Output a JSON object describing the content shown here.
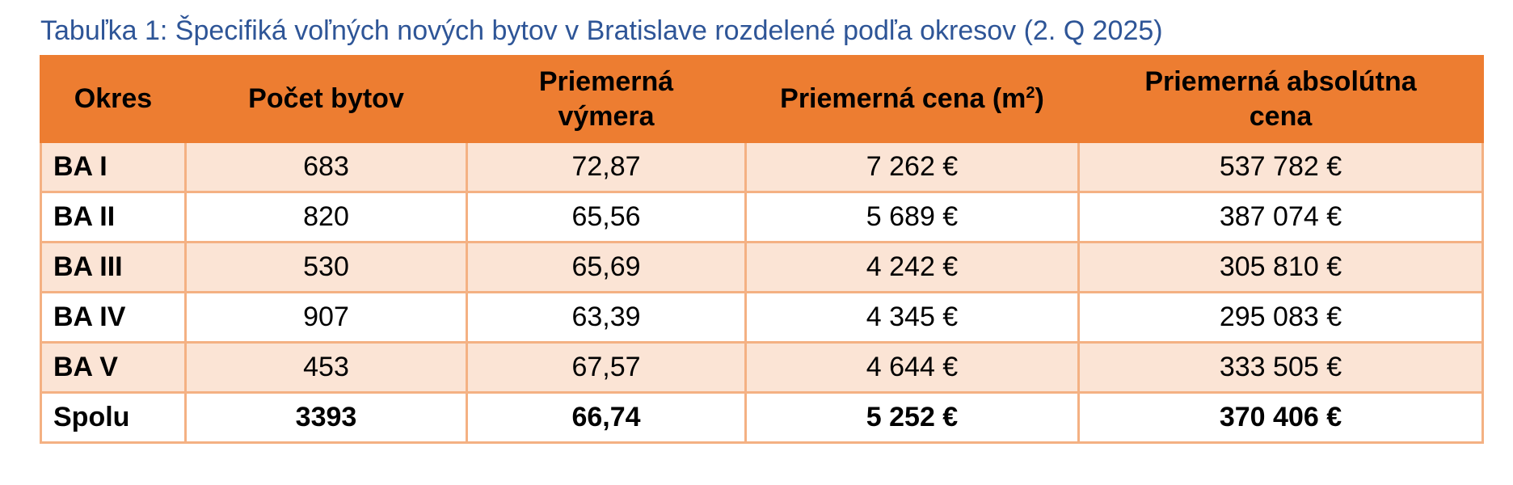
{
  "caption": "Tabuľka 1: Špecifiká voľných nových bytov v Bratislave rozdelené podľa okresov (2. Q 2025)",
  "header": {
    "district": "Okres",
    "count": "Počet bytov",
    "area_line1": "Priemerná",
    "area_line2": "výmera",
    "price_m2_text": "Priemerná cena (m",
    "price_m2_sup": "2",
    "price_m2_close": ")",
    "abs_line1": "Priemerná absolútna",
    "abs_line2": "cena"
  },
  "rows": [
    {
      "district": "BA I",
      "count": "683",
      "area": "72,87",
      "price_m2": "7 262 €",
      "abs_price": "537 782 €"
    },
    {
      "district": "BA II",
      "count": "820",
      "area": "65,56",
      "price_m2": "5 689 €",
      "abs_price": "387 074 €"
    },
    {
      "district": "BA III",
      "count": "530",
      "area": "65,69",
      "price_m2": "4 242 €",
      "abs_price": "305 810 €"
    },
    {
      "district": "BA IV",
      "count": "907",
      "area": "63,39",
      "price_m2": "4 345 €",
      "abs_price": "295 083 €"
    },
    {
      "district": "BA V",
      "count": "453",
      "area": "67,57",
      "price_m2": "4 644 €",
      "abs_price": "333 505 €"
    }
  ],
  "total": {
    "district": "Spolu",
    "count": "3393",
    "area": "66,74",
    "price_m2": "5 252 €",
    "abs_price": "370 406 €"
  },
  "colors": {
    "caption": "#2e5597",
    "header_bg": "#ed7d31",
    "row_band": "#fbe4d5",
    "border": "#f4b183"
  }
}
